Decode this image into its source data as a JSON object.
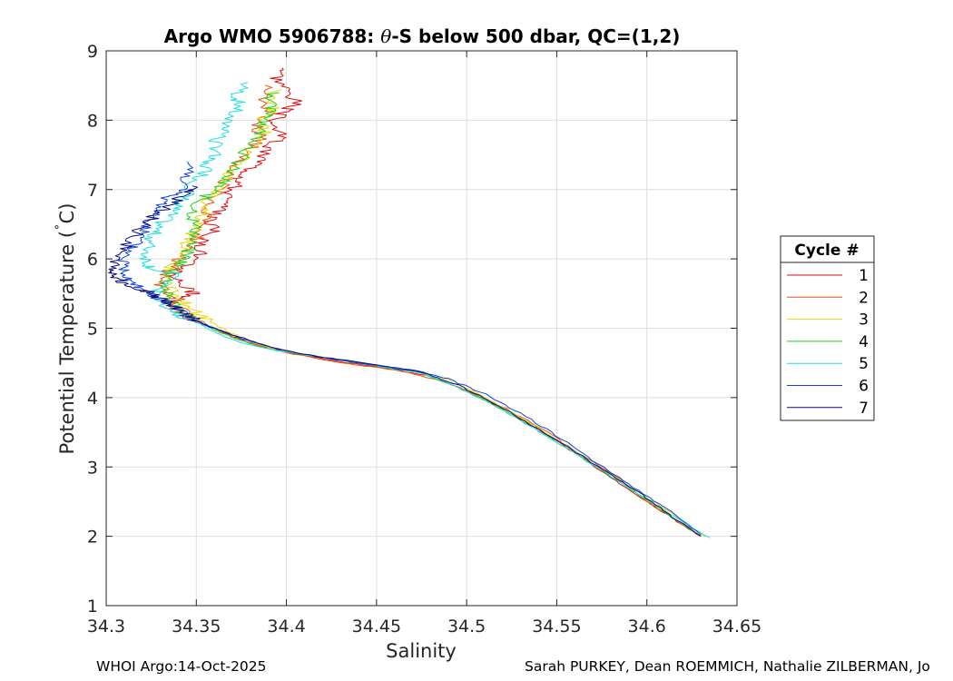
{
  "chart_data": {
    "type": "line",
    "title_main": "Argo WMO 5906788: ",
    "title_theta": "θ",
    "title_rest": "-S below 500 dbar,  QC=(1,2)",
    "xlabel": "Salinity",
    "ylabel_main": "Potential Temperature (",
    "ylabel_deg": "˚",
    "ylabel_unit": "C)",
    "xlim": [
      34.3,
      34.65
    ],
    "ylim": [
      1,
      9
    ],
    "xticks": [
      34.3,
      34.35,
      34.4,
      34.45,
      34.5,
      34.55,
      34.6,
      34.65
    ],
    "xtick_labels": [
      "34.3",
      "34.35",
      "34.4",
      "34.45",
      "34.5",
      "34.55",
      "34.6",
      "34.65"
    ],
    "yticks": [
      1,
      2,
      3,
      4,
      5,
      6,
      7,
      8,
      9
    ],
    "ytick_labels": [
      "1",
      "2",
      "3",
      "4",
      "5",
      "6",
      "7",
      "8",
      "9"
    ],
    "grid": true,
    "legend_title": "Cycle #",
    "legend_position": "outside-right",
    "series": [
      {
        "name": "1",
        "color": "#dd1111",
        "points": [
          [
            34.4,
            8.75
          ],
          [
            34.395,
            8.6
          ],
          [
            34.4,
            8.45
          ],
          [
            34.406,
            8.25
          ],
          [
            34.398,
            8.12
          ],
          [
            34.392,
            7.95
          ],
          [
            34.398,
            7.75
          ],
          [
            34.388,
            7.6
          ],
          [
            34.386,
            7.4
          ],
          [
            34.378,
            7.25
          ],
          [
            34.375,
            7.12
          ],
          [
            34.37,
            7.0
          ],
          [
            34.366,
            6.85
          ],
          [
            34.362,
            6.7
          ],
          [
            34.358,
            6.55
          ],
          [
            34.36,
            6.4
          ],
          [
            34.352,
            6.25
          ],
          [
            34.354,
            6.1
          ],
          [
            34.346,
            5.95
          ],
          [
            34.342,
            5.85
          ],
          [
            34.338,
            5.75
          ],
          [
            34.344,
            5.6
          ],
          [
            34.348,
            5.5
          ],
          [
            34.338,
            5.4
          ],
          [
            34.338,
            5.3
          ],
          [
            34.342,
            5.2
          ],
          [
            34.35,
            5.1
          ],
          [
            34.36,
            5.0
          ],
          [
            34.37,
            4.88
          ],
          [
            34.385,
            4.75
          ],
          [
            34.4,
            4.65
          ],
          [
            34.43,
            4.52
          ],
          [
            34.46,
            4.4
          ],
          [
            34.48,
            4.3
          ],
          [
            34.5,
            4.1
          ],
          [
            34.52,
            3.85
          ],
          [
            34.54,
            3.55
          ],
          [
            34.56,
            3.2
          ],
          [
            34.58,
            2.85
          ],
          [
            34.6,
            2.5
          ],
          [
            34.615,
            2.25
          ],
          [
            34.63,
            2.0
          ]
        ]
      },
      {
        "name": "2",
        "color": "#e85510",
        "points": [
          [
            34.392,
            8.5
          ],
          [
            34.386,
            8.3
          ],
          [
            34.39,
            8.1
          ],
          [
            34.384,
            7.9
          ],
          [
            34.386,
            7.7
          ],
          [
            34.376,
            7.5
          ],
          [
            34.372,
            7.3
          ],
          [
            34.366,
            7.1
          ],
          [
            34.36,
            6.9
          ],
          [
            34.356,
            6.7
          ],
          [
            34.354,
            6.5
          ],
          [
            34.35,
            6.3
          ],
          [
            34.344,
            6.1
          ],
          [
            34.338,
            5.95
          ],
          [
            34.334,
            5.8
          ],
          [
            34.33,
            5.65
          ],
          [
            34.332,
            5.5
          ],
          [
            34.338,
            5.35
          ],
          [
            34.346,
            5.2
          ],
          [
            34.356,
            5.05
          ],
          [
            34.368,
            4.9
          ],
          [
            34.38,
            4.78
          ],
          [
            34.4,
            4.65
          ],
          [
            34.43,
            4.5
          ],
          [
            34.46,
            4.4
          ],
          [
            34.485,
            4.25
          ],
          [
            34.505,
            4.05
          ],
          [
            34.525,
            3.8
          ],
          [
            34.545,
            3.5
          ],
          [
            34.565,
            3.15
          ],
          [
            34.585,
            2.82
          ],
          [
            34.6,
            2.5
          ],
          [
            34.615,
            2.25
          ],
          [
            34.63,
            2.0
          ]
        ]
      },
      {
        "name": "3",
        "color": "#e8d800",
        "points": [
          [
            34.394,
            8.45
          ],
          [
            34.39,
            8.3
          ],
          [
            34.392,
            8.15
          ],
          [
            34.386,
            8.0
          ],
          [
            34.388,
            7.8
          ],
          [
            34.38,
            7.6
          ],
          [
            34.374,
            7.4
          ],
          [
            34.368,
            7.2
          ],
          [
            34.362,
            7.0
          ],
          [
            34.356,
            6.85
          ],
          [
            34.354,
            6.65
          ],
          [
            34.35,
            6.45
          ],
          [
            34.346,
            6.25
          ],
          [
            34.34,
            6.05
          ],
          [
            34.336,
            5.9
          ],
          [
            34.332,
            5.75
          ],
          [
            34.334,
            5.6
          ],
          [
            34.34,
            5.45
          ],
          [
            34.346,
            5.3
          ],
          [
            34.354,
            5.15
          ],
          [
            34.364,
            5.0
          ],
          [
            34.376,
            4.85
          ],
          [
            34.39,
            4.72
          ],
          [
            34.41,
            4.62
          ],
          [
            34.44,
            4.5
          ],
          [
            34.47,
            4.38
          ],
          [
            34.49,
            4.25
          ],
          [
            34.51,
            4.0
          ],
          [
            34.53,
            3.72
          ],
          [
            34.55,
            3.4
          ],
          [
            34.57,
            3.05
          ],
          [
            34.59,
            2.72
          ],
          [
            34.61,
            2.4
          ],
          [
            34.632,
            2.0
          ]
        ]
      },
      {
        "name": "4",
        "color": "#22cc22",
        "points": [
          [
            34.394,
            8.4
          ],
          [
            34.39,
            8.2
          ],
          [
            34.392,
            8.05
          ],
          [
            34.386,
            7.9
          ],
          [
            34.384,
            7.7
          ],
          [
            34.376,
            7.5
          ],
          [
            34.37,
            7.3
          ],
          [
            34.364,
            7.1
          ],
          [
            34.358,
            6.95
          ],
          [
            34.35,
            6.8
          ],
          [
            34.348,
            6.6
          ],
          [
            34.35,
            6.4
          ],
          [
            34.346,
            6.2
          ],
          [
            34.344,
            6.0
          ],
          [
            34.338,
            5.85
          ],
          [
            34.334,
            5.7
          ],
          [
            34.332,
            5.55
          ],
          [
            34.336,
            5.4
          ],
          [
            34.342,
            5.25
          ],
          [
            34.35,
            5.1
          ],
          [
            34.362,
            4.95
          ],
          [
            34.375,
            4.82
          ],
          [
            34.39,
            4.7
          ],
          [
            34.42,
            4.58
          ],
          [
            34.45,
            4.46
          ],
          [
            34.475,
            4.35
          ],
          [
            34.495,
            4.15
          ],
          [
            34.515,
            3.9
          ],
          [
            34.535,
            3.6
          ],
          [
            34.555,
            3.28
          ],
          [
            34.575,
            2.95
          ],
          [
            34.595,
            2.62
          ],
          [
            34.612,
            2.3
          ],
          [
            34.63,
            2.0
          ]
        ]
      },
      {
        "name": "5",
        "color": "#22dddd",
        "points": [
          [
            34.378,
            8.55
          ],
          [
            34.372,
            8.35
          ],
          [
            34.374,
            8.2
          ],
          [
            34.366,
            8.0
          ],
          [
            34.368,
            7.85
          ],
          [
            34.36,
            7.7
          ],
          [
            34.362,
            7.55
          ],
          [
            34.354,
            7.4
          ],
          [
            34.356,
            7.25
          ],
          [
            34.348,
            7.1
          ],
          [
            34.346,
            6.95
          ],
          [
            34.34,
            6.8
          ],
          [
            34.336,
            6.65
          ],
          [
            34.33,
            6.5
          ],
          [
            34.326,
            6.35
          ],
          [
            34.324,
            6.2
          ],
          [
            34.322,
            6.05
          ],
          [
            34.324,
            5.9
          ],
          [
            34.33,
            5.8
          ],
          [
            34.34,
            5.8
          ],
          [
            34.334,
            5.65
          ],
          [
            34.326,
            5.5
          ],
          [
            34.332,
            5.35
          ],
          [
            34.34,
            5.2
          ],
          [
            34.35,
            5.08
          ],
          [
            34.36,
            4.95
          ],
          [
            34.372,
            4.82
          ],
          [
            34.39,
            4.7
          ],
          [
            34.42,
            4.58
          ],
          [
            34.45,
            4.46
          ],
          [
            34.475,
            4.35
          ],
          [
            34.495,
            4.15
          ],
          [
            34.515,
            3.9
          ],
          [
            34.535,
            3.6
          ],
          [
            34.555,
            3.28
          ],
          [
            34.575,
            2.95
          ],
          [
            34.595,
            2.62
          ],
          [
            34.615,
            2.28
          ],
          [
            34.635,
            1.98
          ]
        ]
      },
      {
        "name": "6",
        "color": "#1144dd",
        "points": [
          [
            34.346,
            7.4
          ],
          [
            34.346,
            7.2
          ],
          [
            34.342,
            7.0
          ],
          [
            34.334,
            6.9
          ],
          [
            34.33,
            6.75
          ],
          [
            34.326,
            6.6
          ],
          [
            34.322,
            6.45
          ],
          [
            34.318,
            6.3
          ],
          [
            34.314,
            6.15
          ],
          [
            34.31,
            6.0
          ],
          [
            34.31,
            5.85
          ],
          [
            34.312,
            5.75
          ],
          [
            34.316,
            5.65
          ],
          [
            34.322,
            5.55
          ],
          [
            34.326,
            5.45
          ],
          [
            34.334,
            5.35
          ],
          [
            34.342,
            5.22
          ],
          [
            34.35,
            5.1
          ],
          [
            34.362,
            4.98
          ],
          [
            34.375,
            4.85
          ],
          [
            34.392,
            4.72
          ],
          [
            34.41,
            4.62
          ],
          [
            34.44,
            4.5
          ],
          [
            34.47,
            4.4
          ],
          [
            34.49,
            4.27
          ],
          [
            34.51,
            4.05
          ],
          [
            34.53,
            3.78
          ],
          [
            34.55,
            3.45
          ],
          [
            34.57,
            3.1
          ],
          [
            34.59,
            2.75
          ],
          [
            34.61,
            2.42
          ],
          [
            34.63,
            2.02
          ]
        ]
      },
      {
        "name": "7",
        "color": "#0a0a80",
        "points": [
          [
            34.35,
            7.05
          ],
          [
            34.344,
            6.95
          ],
          [
            34.336,
            6.8
          ],
          [
            34.328,
            6.65
          ],
          [
            34.322,
            6.5
          ],
          [
            34.316,
            6.35
          ],
          [
            34.31,
            6.15
          ],
          [
            34.305,
            6.0
          ],
          [
            34.302,
            5.85
          ],
          [
            34.305,
            5.75
          ],
          [
            34.31,
            5.65
          ],
          [
            34.318,
            5.55
          ],
          [
            34.326,
            5.5
          ],
          [
            34.332,
            5.4
          ],
          [
            34.338,
            5.3
          ],
          [
            34.346,
            5.18
          ],
          [
            34.354,
            5.06
          ],
          [
            34.366,
            4.94
          ],
          [
            34.38,
            4.82
          ],
          [
            34.395,
            4.7
          ],
          [
            34.42,
            4.58
          ],
          [
            34.45,
            4.47
          ],
          [
            34.475,
            4.36
          ],
          [
            34.495,
            4.18
          ],
          [
            34.515,
            3.92
          ],
          [
            34.535,
            3.62
          ],
          [
            34.555,
            3.3
          ],
          [
            34.575,
            2.97
          ],
          [
            34.595,
            2.64
          ],
          [
            34.612,
            2.32
          ],
          [
            34.63,
            2.0
          ]
        ]
      }
    ]
  },
  "footer": {
    "left": "WHOI Argo:14-Oct-2025",
    "right": "Sarah PURKEY, Dean ROEMMICH, Nathalie ZILBERMAN, Jo"
  }
}
